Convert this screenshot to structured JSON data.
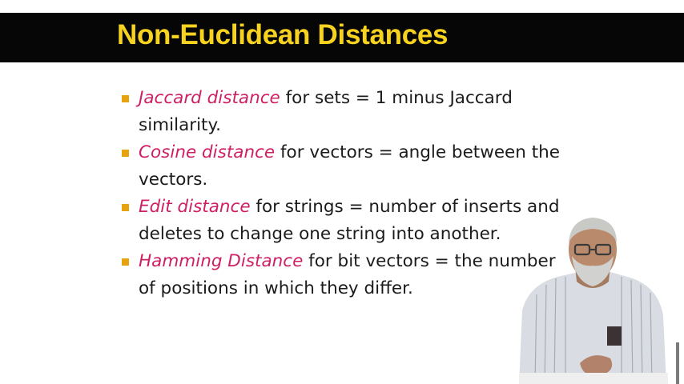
{
  "slide": {
    "title": "Non-Euclidean Distances",
    "bullets": [
      {
        "term": "Jaccard distance",
        "text": " for sets = 1 minus Jaccard similarity."
      },
      {
        "term": "Cosine distance",
        "text": " for vectors = angle between the vectors."
      },
      {
        "term": "Edit distance",
        "text": " for strings = number of inserts and deletes to change one string into another."
      },
      {
        "term": "Hamming Distance",
        "text": " for bit vectors = the number of positions in which they differ."
      }
    ]
  },
  "colors": {
    "title_bar": "#060606",
    "title_text": "#f7d21f",
    "bullet_marker": "#e7a20f",
    "term_text": "#cf1f64",
    "body_text": "#1b1b1b"
  }
}
